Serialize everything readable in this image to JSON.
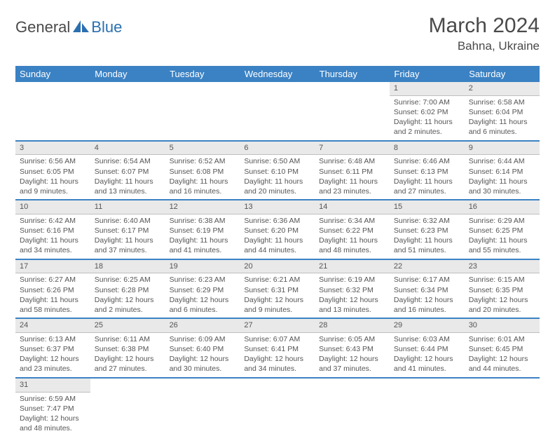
{
  "logo": {
    "general": "General",
    "blue": "Blue"
  },
  "title": "March 2024",
  "location": "Bahna, Ukraine",
  "weekdays": [
    "Sunday",
    "Monday",
    "Tuesday",
    "Wednesday",
    "Thursday",
    "Friday",
    "Saturday"
  ],
  "colors": {
    "header_bg": "#3b82c4",
    "header_text": "#ffffff",
    "daynum_bg": "#e9e9e9",
    "text": "#4a4a4a",
    "logo_blue": "#2b6fb0"
  },
  "weeks": [
    [
      null,
      null,
      null,
      null,
      null,
      {
        "n": "1",
        "sunrise": "Sunrise: 7:00 AM",
        "sunset": "Sunset: 6:02 PM",
        "day1": "Daylight: 11 hours",
        "day2": "and 2 minutes."
      },
      {
        "n": "2",
        "sunrise": "Sunrise: 6:58 AM",
        "sunset": "Sunset: 6:04 PM",
        "day1": "Daylight: 11 hours",
        "day2": "and 6 minutes."
      }
    ],
    [
      {
        "n": "3",
        "sunrise": "Sunrise: 6:56 AM",
        "sunset": "Sunset: 6:05 PM",
        "day1": "Daylight: 11 hours",
        "day2": "and 9 minutes."
      },
      {
        "n": "4",
        "sunrise": "Sunrise: 6:54 AM",
        "sunset": "Sunset: 6:07 PM",
        "day1": "Daylight: 11 hours",
        "day2": "and 13 minutes."
      },
      {
        "n": "5",
        "sunrise": "Sunrise: 6:52 AM",
        "sunset": "Sunset: 6:08 PM",
        "day1": "Daylight: 11 hours",
        "day2": "and 16 minutes."
      },
      {
        "n": "6",
        "sunrise": "Sunrise: 6:50 AM",
        "sunset": "Sunset: 6:10 PM",
        "day1": "Daylight: 11 hours",
        "day2": "and 20 minutes."
      },
      {
        "n": "7",
        "sunrise": "Sunrise: 6:48 AM",
        "sunset": "Sunset: 6:11 PM",
        "day1": "Daylight: 11 hours",
        "day2": "and 23 minutes."
      },
      {
        "n": "8",
        "sunrise": "Sunrise: 6:46 AM",
        "sunset": "Sunset: 6:13 PM",
        "day1": "Daylight: 11 hours",
        "day2": "and 27 minutes."
      },
      {
        "n": "9",
        "sunrise": "Sunrise: 6:44 AM",
        "sunset": "Sunset: 6:14 PM",
        "day1": "Daylight: 11 hours",
        "day2": "and 30 minutes."
      }
    ],
    [
      {
        "n": "10",
        "sunrise": "Sunrise: 6:42 AM",
        "sunset": "Sunset: 6:16 PM",
        "day1": "Daylight: 11 hours",
        "day2": "and 34 minutes."
      },
      {
        "n": "11",
        "sunrise": "Sunrise: 6:40 AM",
        "sunset": "Sunset: 6:17 PM",
        "day1": "Daylight: 11 hours",
        "day2": "and 37 minutes."
      },
      {
        "n": "12",
        "sunrise": "Sunrise: 6:38 AM",
        "sunset": "Sunset: 6:19 PM",
        "day1": "Daylight: 11 hours",
        "day2": "and 41 minutes."
      },
      {
        "n": "13",
        "sunrise": "Sunrise: 6:36 AM",
        "sunset": "Sunset: 6:20 PM",
        "day1": "Daylight: 11 hours",
        "day2": "and 44 minutes."
      },
      {
        "n": "14",
        "sunrise": "Sunrise: 6:34 AM",
        "sunset": "Sunset: 6:22 PM",
        "day1": "Daylight: 11 hours",
        "day2": "and 48 minutes."
      },
      {
        "n": "15",
        "sunrise": "Sunrise: 6:32 AM",
        "sunset": "Sunset: 6:23 PM",
        "day1": "Daylight: 11 hours",
        "day2": "and 51 minutes."
      },
      {
        "n": "16",
        "sunrise": "Sunrise: 6:29 AM",
        "sunset": "Sunset: 6:25 PM",
        "day1": "Daylight: 11 hours",
        "day2": "and 55 minutes."
      }
    ],
    [
      {
        "n": "17",
        "sunrise": "Sunrise: 6:27 AM",
        "sunset": "Sunset: 6:26 PM",
        "day1": "Daylight: 11 hours",
        "day2": "and 58 minutes."
      },
      {
        "n": "18",
        "sunrise": "Sunrise: 6:25 AM",
        "sunset": "Sunset: 6:28 PM",
        "day1": "Daylight: 12 hours",
        "day2": "and 2 minutes."
      },
      {
        "n": "19",
        "sunrise": "Sunrise: 6:23 AM",
        "sunset": "Sunset: 6:29 PM",
        "day1": "Daylight: 12 hours",
        "day2": "and 6 minutes."
      },
      {
        "n": "20",
        "sunrise": "Sunrise: 6:21 AM",
        "sunset": "Sunset: 6:31 PM",
        "day1": "Daylight: 12 hours",
        "day2": "and 9 minutes."
      },
      {
        "n": "21",
        "sunrise": "Sunrise: 6:19 AM",
        "sunset": "Sunset: 6:32 PM",
        "day1": "Daylight: 12 hours",
        "day2": "and 13 minutes."
      },
      {
        "n": "22",
        "sunrise": "Sunrise: 6:17 AM",
        "sunset": "Sunset: 6:34 PM",
        "day1": "Daylight: 12 hours",
        "day2": "and 16 minutes."
      },
      {
        "n": "23",
        "sunrise": "Sunrise: 6:15 AM",
        "sunset": "Sunset: 6:35 PM",
        "day1": "Daylight: 12 hours",
        "day2": "and 20 minutes."
      }
    ],
    [
      {
        "n": "24",
        "sunrise": "Sunrise: 6:13 AM",
        "sunset": "Sunset: 6:37 PM",
        "day1": "Daylight: 12 hours",
        "day2": "and 23 minutes."
      },
      {
        "n": "25",
        "sunrise": "Sunrise: 6:11 AM",
        "sunset": "Sunset: 6:38 PM",
        "day1": "Daylight: 12 hours",
        "day2": "and 27 minutes."
      },
      {
        "n": "26",
        "sunrise": "Sunrise: 6:09 AM",
        "sunset": "Sunset: 6:40 PM",
        "day1": "Daylight: 12 hours",
        "day2": "and 30 minutes."
      },
      {
        "n": "27",
        "sunrise": "Sunrise: 6:07 AM",
        "sunset": "Sunset: 6:41 PM",
        "day1": "Daylight: 12 hours",
        "day2": "and 34 minutes."
      },
      {
        "n": "28",
        "sunrise": "Sunrise: 6:05 AM",
        "sunset": "Sunset: 6:43 PM",
        "day1": "Daylight: 12 hours",
        "day2": "and 37 minutes."
      },
      {
        "n": "29",
        "sunrise": "Sunrise: 6:03 AM",
        "sunset": "Sunset: 6:44 PM",
        "day1": "Daylight: 12 hours",
        "day2": "and 41 minutes."
      },
      {
        "n": "30",
        "sunrise": "Sunrise: 6:01 AM",
        "sunset": "Sunset: 6:45 PM",
        "day1": "Daylight: 12 hours",
        "day2": "and 44 minutes."
      }
    ],
    [
      {
        "n": "31",
        "sunrise": "Sunrise: 6:59 AM",
        "sunset": "Sunset: 7:47 PM",
        "day1": "Daylight: 12 hours",
        "day2": "and 48 minutes."
      },
      null,
      null,
      null,
      null,
      null,
      null
    ]
  ]
}
